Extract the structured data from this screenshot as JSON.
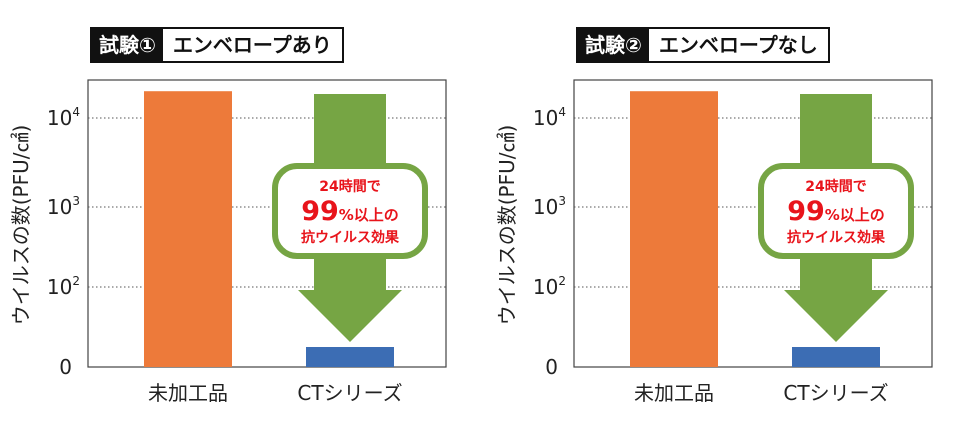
{
  "charts": [
    {
      "trial_label": "試験①",
      "trial_condition": "エンベロープあり",
      "callout": {
        "line1": "24時間で",
        "big": "99",
        "line2_rest": "%以上の",
        "line3": "抗ウイルス効果"
      }
    },
    {
      "trial_label": "試験②",
      "trial_condition": "エンベロープなし",
      "callout": {
        "line1": "24時間で",
        "big": "99",
        "line2_rest": "%以上の",
        "line3": "抗ウイルス効果"
      }
    }
  ],
  "chart_data": [
    {
      "type": "bar",
      "title": "試験① エンベロープあり",
      "ylabel": "ウイルスの数(PFU/㎠)",
      "yscale": "log",
      "yticks": [
        "0",
        "10^2",
        "10^3",
        "10^4"
      ],
      "categories": [
        "未加工品",
        "CTシリーズ"
      ],
      "values": [
        20000,
        1
      ],
      "colors": [
        "#ed7a3a",
        "#3c6db4"
      ],
      "grid": "dotted-horizontal",
      "arrow_color": "#76a544",
      "callout_color": "#e8141b"
    },
    {
      "type": "bar",
      "title": "試験② エンベロープなし",
      "ylabel": "ウイルスの数(PFU/㎠)",
      "yscale": "log",
      "yticks": [
        "0",
        "10^2",
        "10^3",
        "10^4"
      ],
      "categories": [
        "未加工品",
        "CTシリーズ"
      ],
      "values": [
        20000,
        1
      ],
      "colors": [
        "#ed7a3a",
        "#3c6db4"
      ],
      "grid": "dotted-horizontal",
      "arrow_color": "#76a544",
      "callout_color": "#e8141b"
    }
  ]
}
